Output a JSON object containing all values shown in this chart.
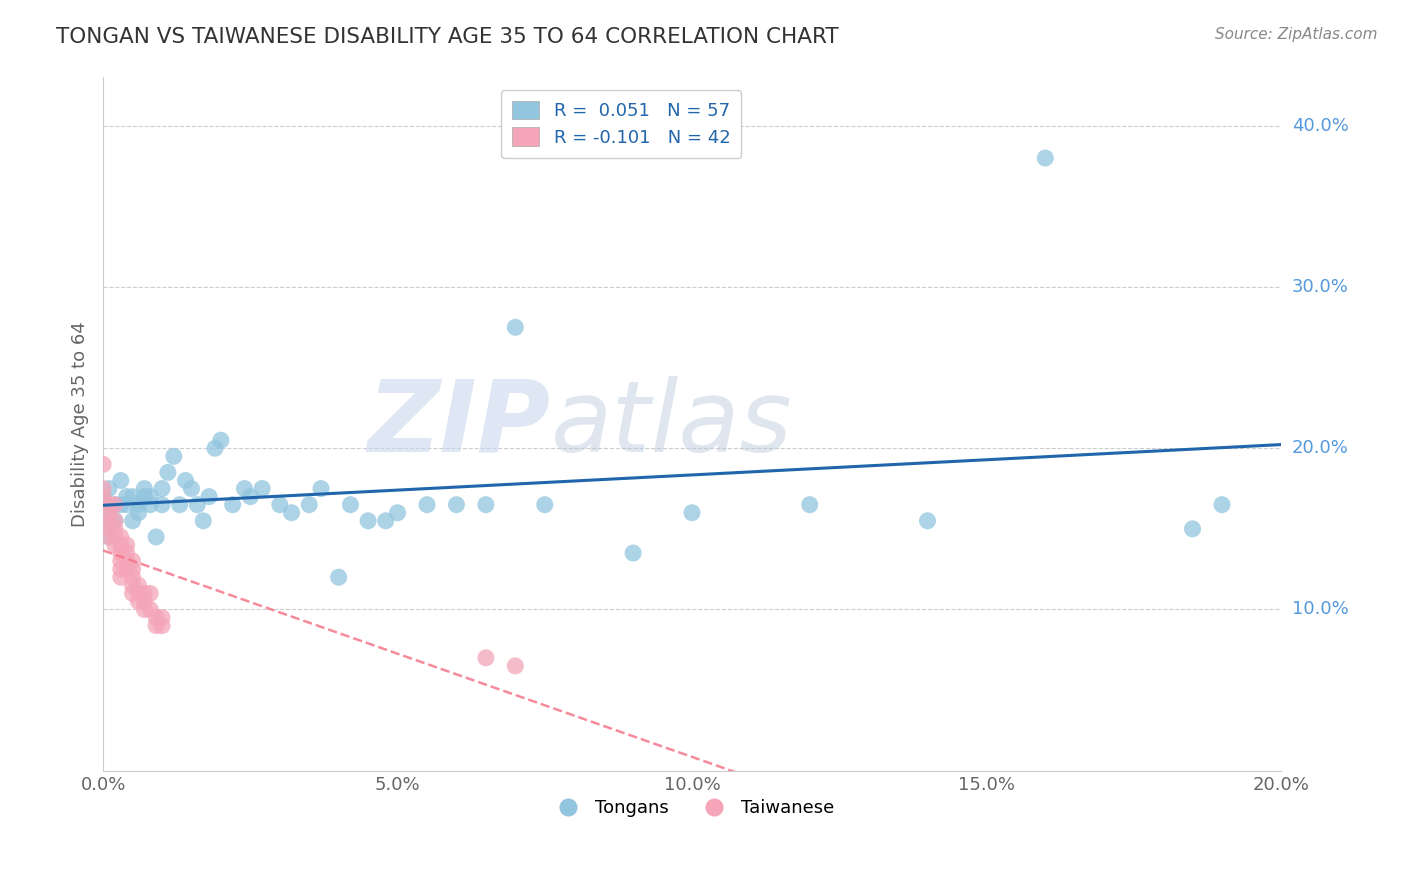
{
  "title": "TONGAN VS TAIWANESE DISABILITY AGE 35 TO 64 CORRELATION CHART",
  "source": "Source: ZipAtlas.com",
  "ylabel_label": "Disability Age 35 to 64",
  "xlim": [
    0.0,
    0.2
  ],
  "ylim": [
    0.0,
    0.43
  ],
  "xticks": [
    0.0,
    0.05,
    0.1,
    0.15,
    0.2
  ],
  "yticks": [
    0.1,
    0.2,
    0.3,
    0.4
  ],
  "ytick_labels": [
    "10.0%",
    "20.0%",
    "30.0%",
    "40.0%"
  ],
  "xtick_labels": [
    "0.0%",
    "5.0%",
    "10.0%",
    "15.0%",
    "20.0%"
  ],
  "blue_color": "#92c5de",
  "blue_edge": "#92c5de",
  "pink_color": "#f4a5b8",
  "pink_edge": "#f4a5b8",
  "line_blue": "#2166ac",
  "line_pink": "#f4768a",
  "watermark_zip": "ZIP",
  "watermark_atlas": "atlas",
  "legend_R_blue": "R =  0.051",
  "legend_N_blue": "N = 57",
  "legend_R_pink": "R = -0.101",
  "legend_N_pink": "N = 42",
  "tongan_x": [
    0.0,
    0.0,
    0.001,
    0.001,
    0.001,
    0.002,
    0.002,
    0.003,
    0.003,
    0.004,
    0.004,
    0.005,
    0.005,
    0.006,
    0.006,
    0.007,
    0.007,
    0.008,
    0.008,
    0.009,
    0.01,
    0.01,
    0.011,
    0.012,
    0.013,
    0.014,
    0.015,
    0.016,
    0.017,
    0.018,
    0.019,
    0.02,
    0.022,
    0.024,
    0.025,
    0.027,
    0.03,
    0.032,
    0.035,
    0.037,
    0.04,
    0.042,
    0.045,
    0.048,
    0.05,
    0.055,
    0.06,
    0.065,
    0.07,
    0.075,
    0.09,
    0.1,
    0.12,
    0.14,
    0.16,
    0.185,
    0.19
  ],
  "tongan_y": [
    0.17,
    0.155,
    0.175,
    0.16,
    0.145,
    0.165,
    0.155,
    0.18,
    0.165,
    0.17,
    0.165,
    0.17,
    0.155,
    0.165,
    0.16,
    0.175,
    0.17,
    0.17,
    0.165,
    0.145,
    0.165,
    0.175,
    0.185,
    0.195,
    0.165,
    0.18,
    0.175,
    0.165,
    0.155,
    0.17,
    0.2,
    0.205,
    0.165,
    0.175,
    0.17,
    0.175,
    0.165,
    0.16,
    0.165,
    0.175,
    0.12,
    0.165,
    0.155,
    0.155,
    0.16,
    0.165,
    0.165,
    0.165,
    0.275,
    0.165,
    0.135,
    0.16,
    0.165,
    0.155,
    0.38,
    0.15,
    0.165
  ],
  "taiwanese_x": [
    0.0,
    0.0,
    0.0,
    0.001,
    0.001,
    0.001,
    0.001,
    0.001,
    0.002,
    0.002,
    0.002,
    0.002,
    0.002,
    0.003,
    0.003,
    0.003,
    0.003,
    0.003,
    0.003,
    0.004,
    0.004,
    0.004,
    0.004,
    0.005,
    0.005,
    0.005,
    0.005,
    0.005,
    0.006,
    0.006,
    0.006,
    0.007,
    0.007,
    0.007,
    0.008,
    0.008,
    0.009,
    0.009,
    0.01,
    0.01,
    0.065,
    0.07
  ],
  "taiwanese_y": [
    0.19,
    0.175,
    0.17,
    0.165,
    0.16,
    0.155,
    0.15,
    0.145,
    0.165,
    0.155,
    0.15,
    0.145,
    0.14,
    0.145,
    0.14,
    0.135,
    0.13,
    0.125,
    0.12,
    0.14,
    0.135,
    0.13,
    0.125,
    0.13,
    0.125,
    0.12,
    0.115,
    0.11,
    0.115,
    0.11,
    0.105,
    0.11,
    0.105,
    0.1,
    0.11,
    0.1,
    0.095,
    0.09,
    0.095,
    0.09,
    0.07,
    0.065
  ]
}
